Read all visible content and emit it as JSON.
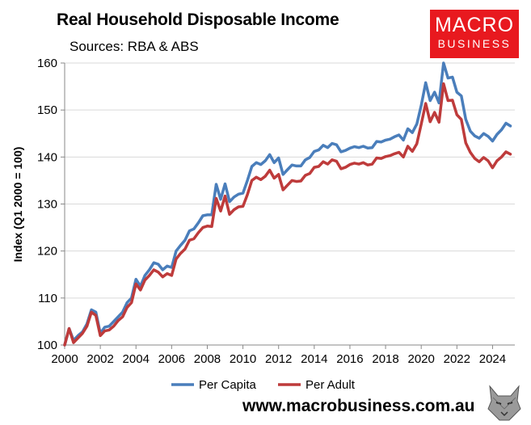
{
  "header": {
    "title": "Real Household Disposable Income",
    "subtitle": "Sources: RBA & ABS"
  },
  "logo": {
    "line1": "MACRO",
    "line2": "BUSINESS"
  },
  "footer": {
    "url": "www.macrobusiness.com.au"
  },
  "colors": {
    "per_capita": "#4a7ebb",
    "per_adult": "#be3b3b",
    "brand": "#e8191f"
  },
  "chart_data": {
    "type": "line",
    "title": "Real Household Disposable Income",
    "xlabel": "",
    "ylabel": "Index (Q1 2000 = 100)",
    "xlim": [
      2000,
      2025.25
    ],
    "ylim": [
      100,
      160
    ],
    "x_ticks": [
      2000,
      2002,
      2004,
      2006,
      2008,
      2010,
      2012,
      2014,
      2016,
      2018,
      2020,
      2022,
      2024
    ],
    "y_ticks": [
      100,
      110,
      120,
      130,
      140,
      150,
      160
    ],
    "grid": "horizontal",
    "legend_position": "bottom",
    "series": [
      {
        "name": "Per Capita",
        "color": "#4a7ebb",
        "points": [
          [
            2000.0,
            100.0
          ],
          [
            2000.25,
            103.5
          ],
          [
            2000.5,
            101.0
          ],
          [
            2000.75,
            102.0
          ],
          [
            2001.0,
            102.8
          ],
          [
            2001.25,
            104.5
          ],
          [
            2001.5,
            107.5
          ],
          [
            2001.75,
            107.0
          ],
          [
            2002.0,
            102.5
          ],
          [
            2002.25,
            103.8
          ],
          [
            2002.5,
            104.0
          ],
          [
            2002.75,
            105.0
          ],
          [
            2003.0,
            106.0
          ],
          [
            2003.25,
            107.0
          ],
          [
            2003.5,
            109.0
          ],
          [
            2003.75,
            110.0
          ],
          [
            2004.0,
            114.0
          ],
          [
            2004.25,
            112.5
          ],
          [
            2004.5,
            114.8
          ],
          [
            2004.75,
            116.0
          ],
          [
            2005.0,
            117.5
          ],
          [
            2005.25,
            117.2
          ],
          [
            2005.5,
            116.0
          ],
          [
            2005.75,
            116.8
          ],
          [
            2006.0,
            116.5
          ],
          [
            2006.25,
            120.0
          ],
          [
            2006.5,
            121.2
          ],
          [
            2006.75,
            122.3
          ],
          [
            2007.0,
            124.3
          ],
          [
            2007.25,
            124.7
          ],
          [
            2007.5,
            126.0
          ],
          [
            2007.75,
            127.5
          ],
          [
            2008.0,
            127.7
          ],
          [
            2008.25,
            127.7
          ],
          [
            2008.5,
            134.2
          ],
          [
            2008.75,
            131.0
          ],
          [
            2009.0,
            134.3
          ],
          [
            2009.25,
            130.5
          ],
          [
            2009.5,
            131.5
          ],
          [
            2009.75,
            132.1
          ],
          [
            2010.0,
            132.3
          ],
          [
            2010.25,
            135.0
          ],
          [
            2010.5,
            138.0
          ],
          [
            2010.75,
            138.8
          ],
          [
            2011.0,
            138.4
          ],
          [
            2011.25,
            139.2
          ],
          [
            2011.5,
            140.5
          ],
          [
            2011.75,
            138.8
          ],
          [
            2012.0,
            139.8
          ],
          [
            2012.25,
            136.3
          ],
          [
            2012.5,
            137.3
          ],
          [
            2012.75,
            138.3
          ],
          [
            2013.0,
            138.1
          ],
          [
            2013.25,
            138.1
          ],
          [
            2013.5,
            139.4
          ],
          [
            2013.75,
            139.9
          ],
          [
            2014.0,
            141.2
          ],
          [
            2014.25,
            141.5
          ],
          [
            2014.5,
            142.5
          ],
          [
            2014.75,
            142.0
          ],
          [
            2015.0,
            142.9
          ],
          [
            2015.25,
            142.6
          ],
          [
            2015.5,
            141.1
          ],
          [
            2015.75,
            141.4
          ],
          [
            2016.0,
            141.9
          ],
          [
            2016.25,
            142.2
          ],
          [
            2016.5,
            142.0
          ],
          [
            2016.75,
            142.3
          ],
          [
            2017.0,
            141.9
          ],
          [
            2017.25,
            142.0
          ],
          [
            2017.5,
            143.3
          ],
          [
            2017.75,
            143.2
          ],
          [
            2018.0,
            143.6
          ],
          [
            2018.25,
            143.8
          ],
          [
            2018.5,
            144.3
          ],
          [
            2018.75,
            144.7
          ],
          [
            2019.0,
            143.6
          ],
          [
            2019.25,
            146.0
          ],
          [
            2019.5,
            145.2
          ],
          [
            2019.75,
            147.0
          ],
          [
            2020.0,
            151.0
          ],
          [
            2020.25,
            155.8
          ],
          [
            2020.5,
            152.0
          ],
          [
            2020.75,
            153.8
          ],
          [
            2021.0,
            151.5
          ],
          [
            2021.25,
            160.0
          ],
          [
            2021.5,
            156.8
          ],
          [
            2021.75,
            157.0
          ],
          [
            2022.0,
            153.8
          ],
          [
            2022.25,
            153.0
          ],
          [
            2022.5,
            148.0
          ],
          [
            2022.75,
            145.5
          ],
          [
            2023.0,
            144.5
          ],
          [
            2023.25,
            144.0
          ],
          [
            2023.5,
            145.0
          ],
          [
            2023.75,
            144.4
          ],
          [
            2024.0,
            143.4
          ],
          [
            2024.25,
            144.8
          ],
          [
            2024.5,
            145.8
          ],
          [
            2024.75,
            147.2
          ],
          [
            2025.0,
            146.6
          ]
        ]
      },
      {
        "name": "Per Adult",
        "color": "#be3b3b",
        "points": [
          [
            2000.0,
            100.0
          ],
          [
            2000.25,
            103.5
          ],
          [
            2000.5,
            100.5
          ],
          [
            2000.75,
            101.5
          ],
          [
            2001.0,
            102.5
          ],
          [
            2001.25,
            104.0
          ],
          [
            2001.5,
            107.0
          ],
          [
            2001.75,
            106.3
          ],
          [
            2002.0,
            102.0
          ],
          [
            2002.25,
            103.0
          ],
          [
            2002.5,
            103.2
          ],
          [
            2002.75,
            104.0
          ],
          [
            2003.0,
            105.2
          ],
          [
            2003.25,
            106.0
          ],
          [
            2003.5,
            108.0
          ],
          [
            2003.75,
            109.0
          ],
          [
            2004.0,
            113.0
          ],
          [
            2004.25,
            111.7
          ],
          [
            2004.5,
            113.8
          ],
          [
            2004.75,
            114.8
          ],
          [
            2005.0,
            116.0
          ],
          [
            2005.25,
            115.5
          ],
          [
            2005.5,
            114.5
          ],
          [
            2005.75,
            115.2
          ],
          [
            2006.0,
            114.8
          ],
          [
            2006.25,
            118.3
          ],
          [
            2006.5,
            119.5
          ],
          [
            2006.75,
            120.4
          ],
          [
            2007.0,
            122.3
          ],
          [
            2007.25,
            122.6
          ],
          [
            2007.5,
            123.9
          ],
          [
            2007.75,
            125.0
          ],
          [
            2008.0,
            125.3
          ],
          [
            2008.25,
            125.2
          ],
          [
            2008.5,
            131.2
          ],
          [
            2008.75,
            128.5
          ],
          [
            2009.0,
            131.7
          ],
          [
            2009.25,
            127.8
          ],
          [
            2009.5,
            128.8
          ],
          [
            2009.75,
            129.4
          ],
          [
            2010.0,
            129.5
          ],
          [
            2010.25,
            132.0
          ],
          [
            2010.5,
            135.0
          ],
          [
            2010.75,
            135.7
          ],
          [
            2011.0,
            135.2
          ],
          [
            2011.25,
            135.9
          ],
          [
            2011.5,
            137.2
          ],
          [
            2011.75,
            135.5
          ],
          [
            2012.0,
            136.3
          ],
          [
            2012.25,
            133.0
          ],
          [
            2012.5,
            134.0
          ],
          [
            2012.75,
            135.0
          ],
          [
            2013.0,
            134.8
          ],
          [
            2013.25,
            134.9
          ],
          [
            2013.5,
            136.1
          ],
          [
            2013.75,
            136.5
          ],
          [
            2014.0,
            137.8
          ],
          [
            2014.25,
            138.0
          ],
          [
            2014.5,
            139.0
          ],
          [
            2014.75,
            138.5
          ],
          [
            2015.0,
            139.4
          ],
          [
            2015.25,
            139.1
          ],
          [
            2015.5,
            137.5
          ],
          [
            2015.75,
            137.8
          ],
          [
            2016.0,
            138.4
          ],
          [
            2016.25,
            138.7
          ],
          [
            2016.5,
            138.5
          ],
          [
            2016.75,
            138.8
          ],
          [
            2017.0,
            138.3
          ],
          [
            2017.25,
            138.5
          ],
          [
            2017.5,
            139.8
          ],
          [
            2017.75,
            139.7
          ],
          [
            2018.0,
            140.1
          ],
          [
            2018.25,
            140.3
          ],
          [
            2018.5,
            140.7
          ],
          [
            2018.75,
            141.0
          ],
          [
            2019.0,
            140.0
          ],
          [
            2019.25,
            142.3
          ],
          [
            2019.5,
            141.2
          ],
          [
            2019.75,
            142.8
          ],
          [
            2020.0,
            147.0
          ],
          [
            2020.25,
            151.4
          ],
          [
            2020.5,
            147.5
          ],
          [
            2020.75,
            149.5
          ],
          [
            2021.0,
            147.4
          ],
          [
            2021.25,
            155.6
          ],
          [
            2021.5,
            152.0
          ],
          [
            2021.75,
            152.1
          ],
          [
            2022.0,
            149.0
          ],
          [
            2022.25,
            148.0
          ],
          [
            2022.5,
            143.0
          ],
          [
            2022.75,
            141.0
          ],
          [
            2023.0,
            139.7
          ],
          [
            2023.25,
            139.0
          ],
          [
            2023.5,
            139.9
          ],
          [
            2023.75,
            139.2
          ],
          [
            2024.0,
            137.7
          ],
          [
            2024.25,
            139.2
          ],
          [
            2024.5,
            140.0
          ],
          [
            2024.75,
            141.1
          ],
          [
            2025.0,
            140.6
          ]
        ]
      }
    ]
  }
}
